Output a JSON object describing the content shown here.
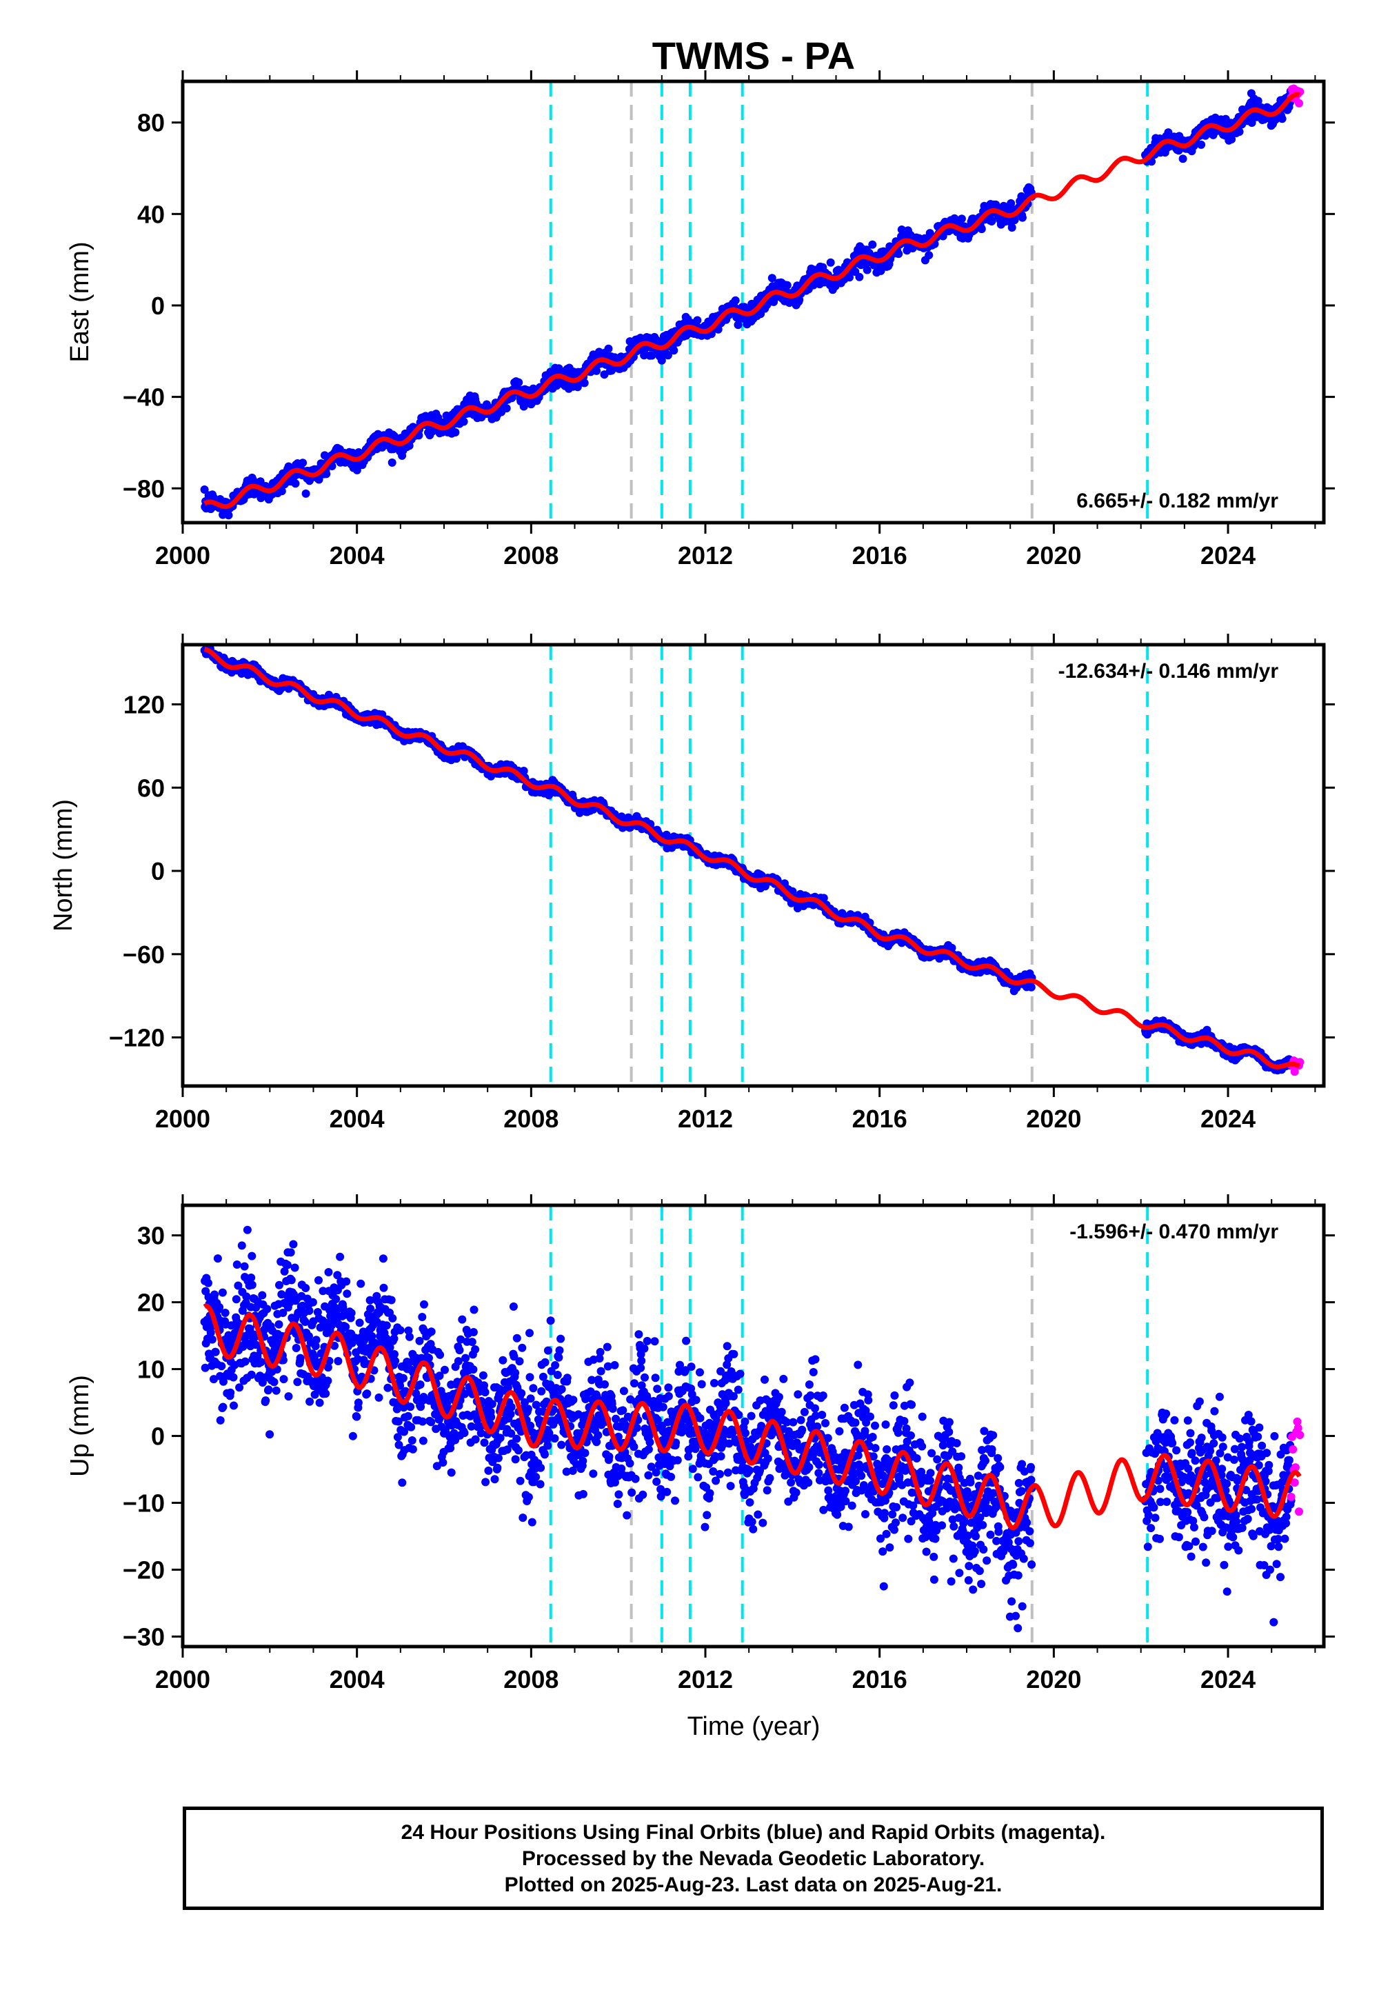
{
  "title": "TWMS - PA",
  "xlabel": "Time (year)",
  "caption": [
    "24 Hour Positions Using Final Orbits (blue) and Rapid Orbits (magenta).",
    "Processed by the Nevada Geodetic Laboratory.",
    "Plotted on 2025-Aug-23. Last data on 2025-Aug-21."
  ],
  "colors": {
    "final_orbits": "#0000ff",
    "rapid_orbits": "#ff00ff",
    "model": "#ff0000",
    "equipment_change": "#00e5ee",
    "other_event": "#c0c0c0"
  },
  "chart_data": [
    {
      "type": "scatter",
      "ylabel": "East (mm)",
      "xlim": [
        2000,
        2026.2
      ],
      "ylim": [
        -95,
        98
      ],
      "xticks": [
        2000,
        2004,
        2008,
        2012,
        2016,
        2020,
        2024
      ],
      "yticks": [
        -80,
        -40,
        0,
        40,
        80
      ],
      "rate_label": "6.665+/- 0.182 mm/yr",
      "rate_position": "bottom-right",
      "velocity_mm_per_yr": 6.665,
      "intercept_at_2000_mm": -87,
      "seasonal_amplitude_mm": 2.5,
      "scatter_mm": 2.2,
      "series": [
        {
          "name": "Final Orbits",
          "color": "blue",
          "x_range": [
            2000.5,
            2019.5
          ],
          "x_range_2": [
            2022.1,
            2025.45
          ]
        },
        {
          "name": "Rapid Orbits",
          "color": "magenta",
          "x_range": [
            2025.45,
            2025.65
          ]
        },
        {
          "name": "Model",
          "color": "red",
          "x_range": [
            2000.5,
            2025.65
          ]
        }
      ],
      "anchor_points": [
        [
          2000.5,
          -89
        ],
        [
          2008.5,
          -34
        ],
        [
          2012,
          -9
        ],
        [
          2016,
          22
        ],
        [
          2019.5,
          45
        ],
        [
          2022.1,
          66
        ],
        [
          2025.6,
          90
        ]
      ]
    },
    {
      "type": "scatter",
      "ylabel": "North (mm)",
      "xlim": [
        2000,
        2026.2
      ],
      "ylim": [
        -155,
        163
      ],
      "xticks": [
        2000,
        2004,
        2008,
        2012,
        2016,
        2020,
        2024
      ],
      "yticks": [
        -120,
        -60,
        0,
        60,
        120
      ],
      "rate_label": "-12.634+/- 0.146 mm/yr",
      "rate_position": "top-right",
      "velocity_mm_per_yr": -12.634,
      "intercept_at_2000_mm": 160,
      "seasonal_amplitude_mm": 3,
      "scatter_mm": 2.0,
      "series": [
        {
          "name": "Final Orbits",
          "color": "blue",
          "x_range": [
            2000.5,
            2019.5
          ],
          "x_range_2": [
            2022.1,
            2025.45
          ]
        },
        {
          "name": "Rapid Orbits",
          "color": "magenta",
          "x_range": [
            2025.45,
            2025.65
          ]
        },
        {
          "name": "Model",
          "color": "red",
          "x_range": [
            2000.5,
            2025.65
          ]
        }
      ],
      "anchor_points": [
        [
          2000.5,
          157
        ],
        [
          2008.5,
          58
        ],
        [
          2012,
          12
        ],
        [
          2016,
          -45
        ],
        [
          2019.5,
          -82
        ],
        [
          2022.1,
          -110
        ],
        [
          2025.6,
          -143
        ]
      ]
    },
    {
      "type": "scatter",
      "ylabel": "Up (mm)",
      "xlim": [
        2000,
        2026.2
      ],
      "ylim": [
        -31.5,
        34.5
      ],
      "xticks": [
        2000,
        2004,
        2008,
        2012,
        2016,
        2020,
        2024
      ],
      "yticks": [
        -30,
        -20,
        -10,
        0,
        10,
        20,
        30
      ],
      "rate_label": "-1.596+/- 0.470 mm/yr",
      "rate_position": "top-right",
      "velocity_mm_per_yr": -1.596,
      "intercept_at_2000_mm": 14,
      "seasonal_amplitude_mm": 3.5,
      "scatter_mm": 4.5,
      "series": [
        {
          "name": "Final Orbits",
          "color": "blue",
          "x_range": [
            2000.5,
            2019.5
          ],
          "x_range_2": [
            2022.1,
            2025.45
          ]
        },
        {
          "name": "Rapid Orbits",
          "color": "magenta",
          "x_range": [
            2025.45,
            2025.65
          ]
        },
        {
          "name": "Model",
          "color": "red",
          "x_range": [
            2000.5,
            2025.65
          ]
        }
      ],
      "anchor_points": [
        [
          2000.5,
          16
        ],
        [
          2003.5,
          12
        ],
        [
          2008,
          2
        ],
        [
          2012,
          1
        ],
        [
          2016,
          -5
        ],
        [
          2019.5,
          -11
        ],
        [
          2022.1,
          -6
        ],
        [
          2025.6,
          -9
        ]
      ]
    }
  ],
  "event_lines": [
    {
      "x": 2008.45,
      "kind": "equipment_change"
    },
    {
      "x": 2010.3,
      "kind": "other_event"
    },
    {
      "x": 2011.0,
      "kind": "equipment_change"
    },
    {
      "x": 2011.65,
      "kind": "equipment_change"
    },
    {
      "x": 2012.85,
      "kind": "equipment_change"
    },
    {
      "x": 2019.5,
      "kind": "other_event"
    },
    {
      "x": 2022.15,
      "kind": "equipment_change"
    }
  ]
}
